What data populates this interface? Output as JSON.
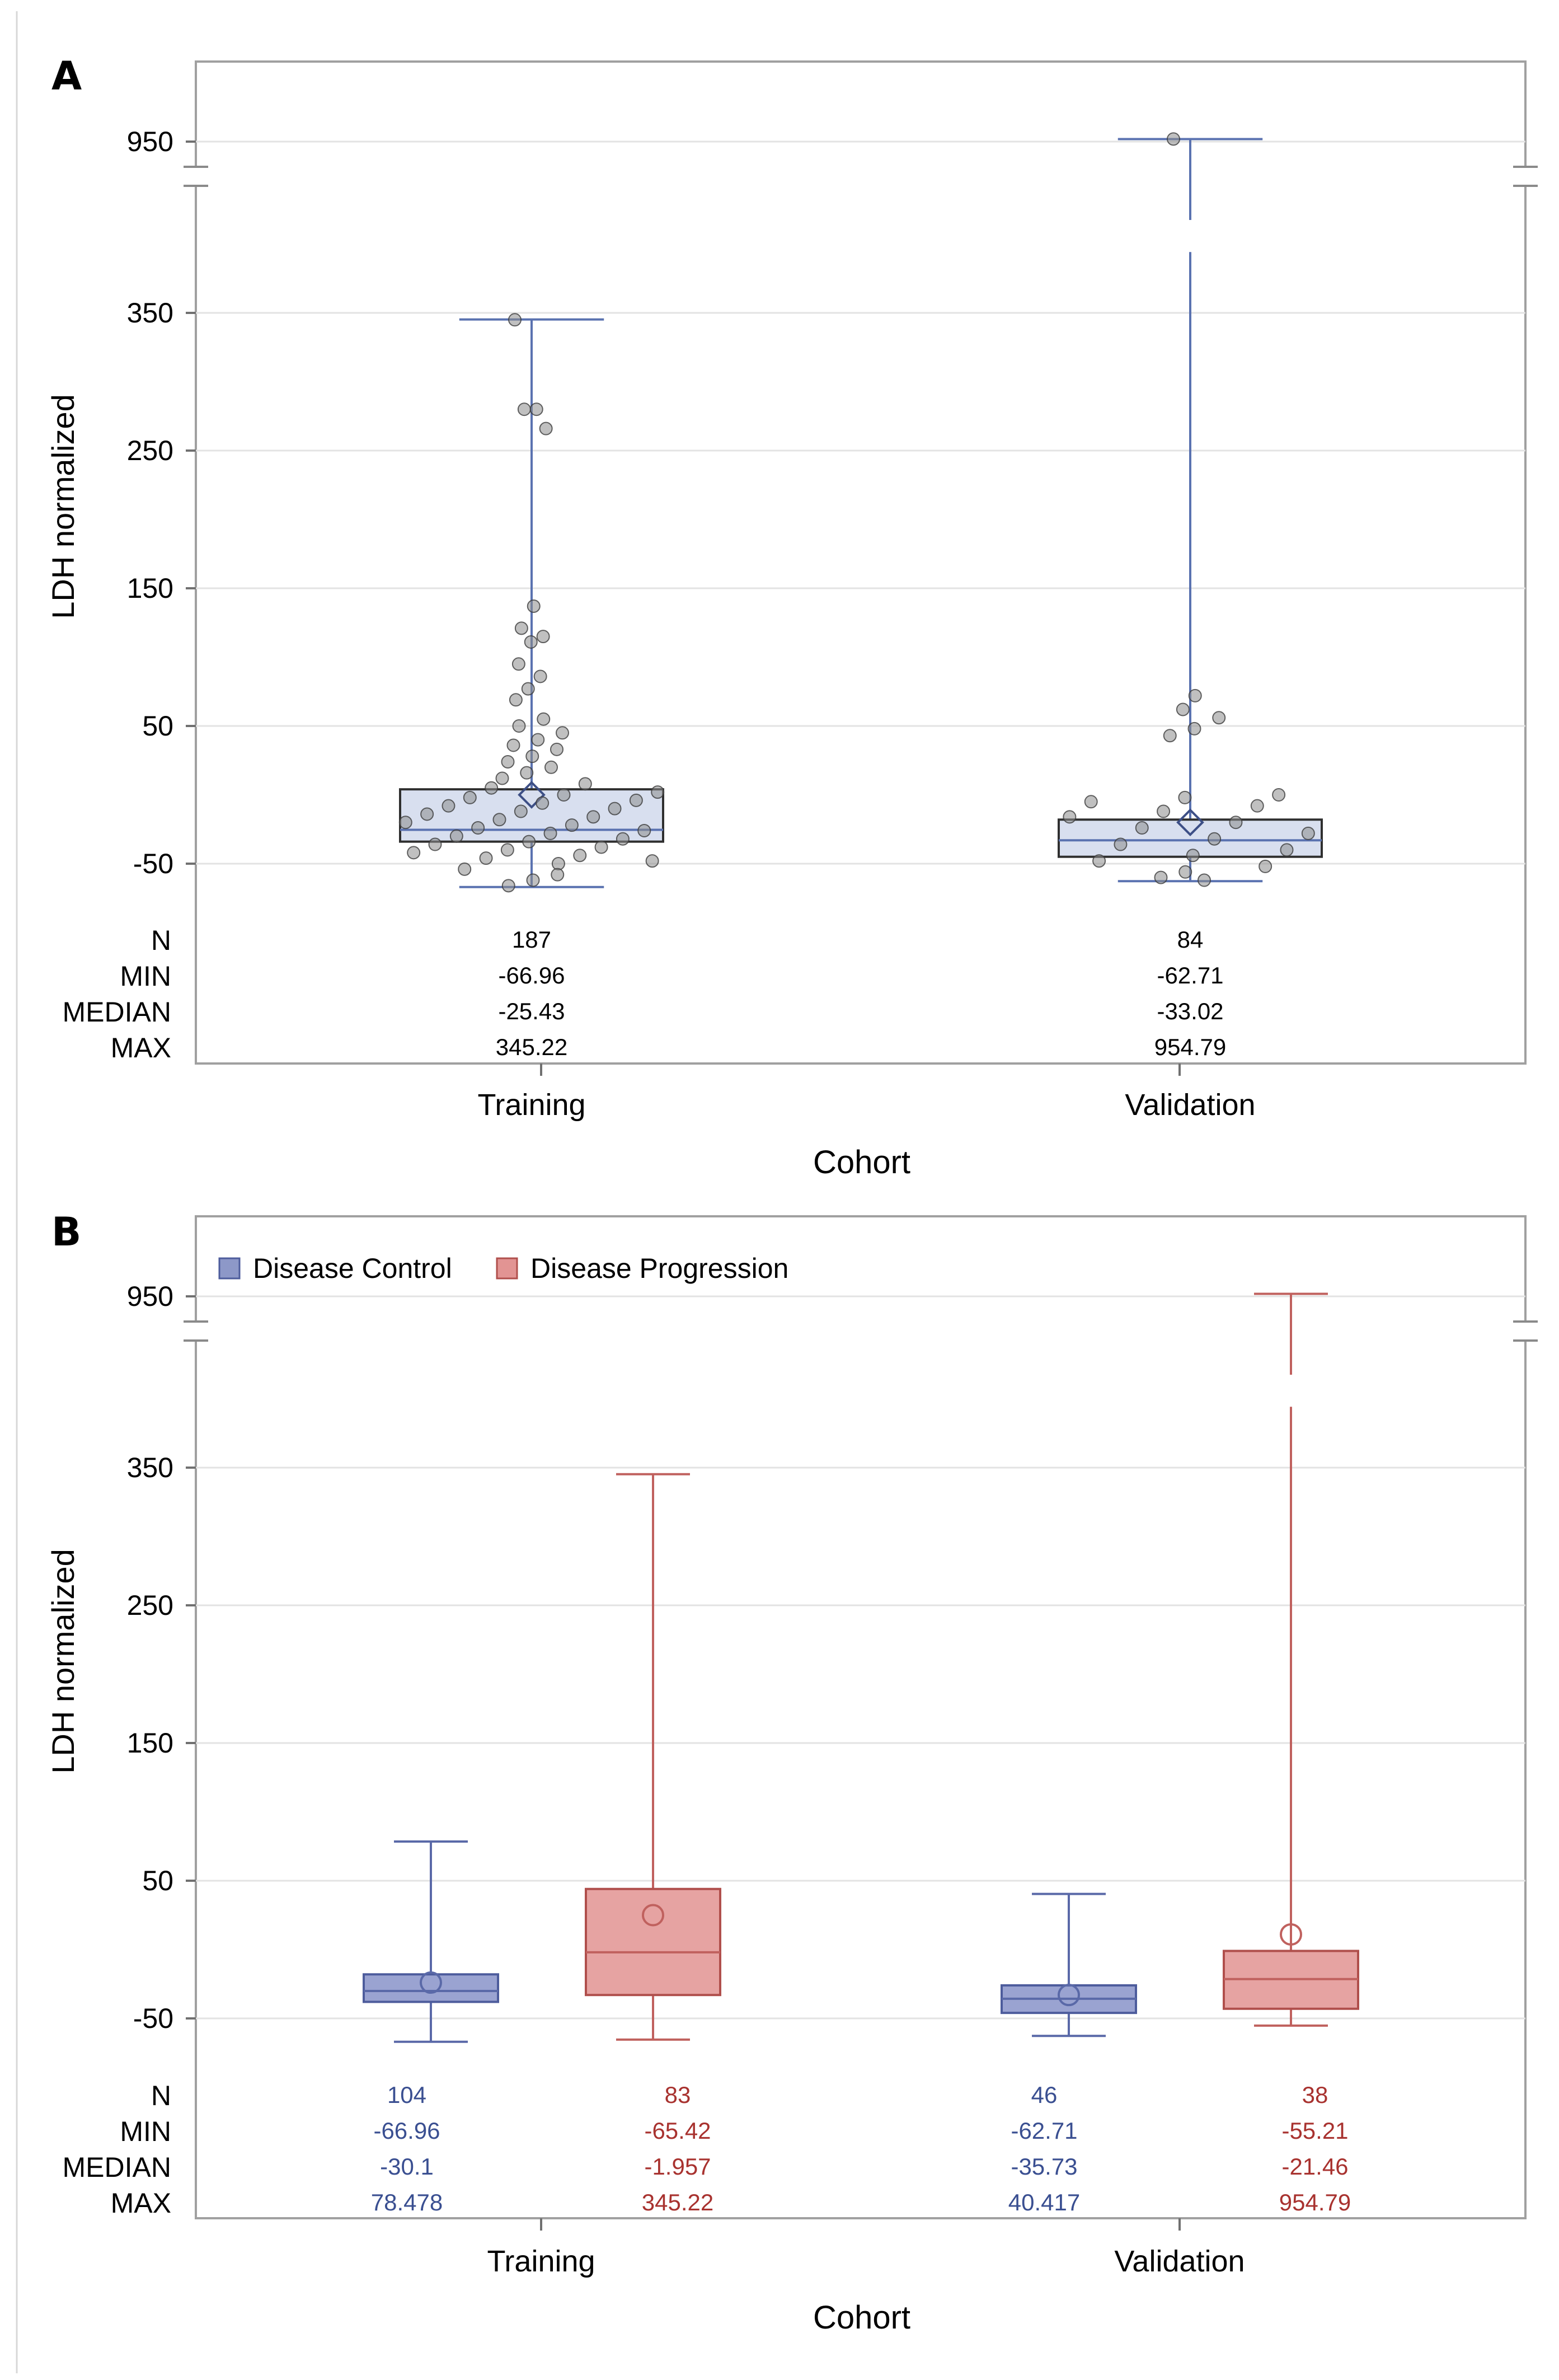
{
  "chart_data": [
    {
      "panel_label": "A",
      "type": "box",
      "ylabel": "LDH normalized",
      "xlabel": "Cohort",
      "axis_break": {
        "lower_segment": [
          -70,
          380
        ],
        "upper_segment": [
          900,
          980
        ]
      },
      "yticks": [
        "-50",
        "50",
        "150",
        "250",
        "350",
        "950"
      ],
      "categories": [
        "Training",
        "Validation"
      ],
      "stat_labels": [
        "N",
        "MIN",
        "MEDIAN",
        "MAX"
      ],
      "stats": [
        [
          "187",
          "-66.96",
          "-25.43",
          "345.22"
        ],
        [
          "84",
          "-62.71",
          "-33.02",
          "954.79"
        ]
      ],
      "boxes": [
        {
          "category": "Training",
          "min": -66.96,
          "q1": -34,
          "median": -25.43,
          "q3": 4,
          "max": 345.22,
          "mean": 0
        },
        {
          "category": "Validation",
          "min": -62.71,
          "q1": -45,
          "median": -33.02,
          "q3": -18,
          "max": 954.79,
          "mean": -20
        }
      ],
      "points": [
        {
          "category": "Training",
          "values": [
            345,
            280,
            280,
            266,
            137,
            121,
            115,
            111,
            95,
            86,
            77,
            69,
            55,
            50,
            45,
            40,
            36,
            33,
            28,
            24,
            20,
            16,
            12,
            8,
            5,
            2,
            0,
            -2,
            -4,
            -6,
            -8,
            -10,
            -12,
            -14,
            -16,
            -18,
            -20,
            -22,
            -24,
            -26,
            -28,
            -30,
            -32,
            -34,
            -36,
            -38,
            -40,
            -42,
            -44,
            -46,
            -48,
            -50,
            -54,
            -58,
            -62,
            -66
          ]
        },
        {
          "category": "Validation",
          "values": [
            955,
            72,
            62,
            56,
            48,
            43,
            0,
            -2,
            -5,
            -8,
            -12,
            -16,
            -20,
            -24,
            -28,
            -32,
            -36,
            -40,
            -44,
            -48,
            -52,
            -56,
            -60,
            -62
          ]
        }
      ]
    },
    {
      "panel_label": "B",
      "type": "box",
      "ylabel": "LDH normalized",
      "xlabel": "Cohort",
      "axis_break": {
        "lower_segment": [
          -70,
          380
        ],
        "upper_segment": [
          900,
          980
        ]
      },
      "yticks": [
        "-50",
        "50",
        "150",
        "250",
        "350",
        "950"
      ],
      "categories": [
        "Training",
        "Validation"
      ],
      "legend": {
        "position": "top-left",
        "entries": [
          "Disease Control",
          "Disease Progression"
        ]
      },
      "colors": {
        "Disease Control": "#8d98c8",
        "Disease Progression": "#e29493",
        "control_text": "#3a4f91",
        "progression_text": "#a8322f"
      },
      "stat_labels": [
        "N",
        "MIN",
        "MEDIAN",
        "MAX"
      ],
      "series": [
        {
          "name": "Disease Control",
          "stats": [
            [
              "104",
              "-66.96",
              "-30.1",
              "78.478"
            ],
            [
              "46",
              "-62.71",
              "-35.73",
              "40.417"
            ]
          ],
          "boxes": [
            {
              "category": "Training",
              "min": -66.96,
              "q1": -38,
              "median": -30.1,
              "q3": -18,
              "max": 78.478,
              "mean": -24
            },
            {
              "category": "Validation",
              "min": -62.71,
              "q1": -46,
              "median": -35.73,
              "q3": -26,
              "max": 40.417,
              "mean": -33
            }
          ]
        },
        {
          "name": "Disease Progression",
          "stats": [
            [
              "83",
              "-65.42",
              "-1.957",
              "345.22"
            ],
            [
              "38",
              "-55.21",
              "-21.46",
              "954.79"
            ]
          ],
          "boxes": [
            {
              "category": "Training",
              "min": -65.42,
              "q1": -33,
              "median": -1.957,
              "q3": 44,
              "max": 345.22,
              "mean": 25
            },
            {
              "category": "Validation",
              "min": -55.21,
              "q1": -43,
              "median": -21.46,
              "q3": -1,
              "max": 954.79,
              "mean": 11
            }
          ]
        }
      ]
    }
  ]
}
